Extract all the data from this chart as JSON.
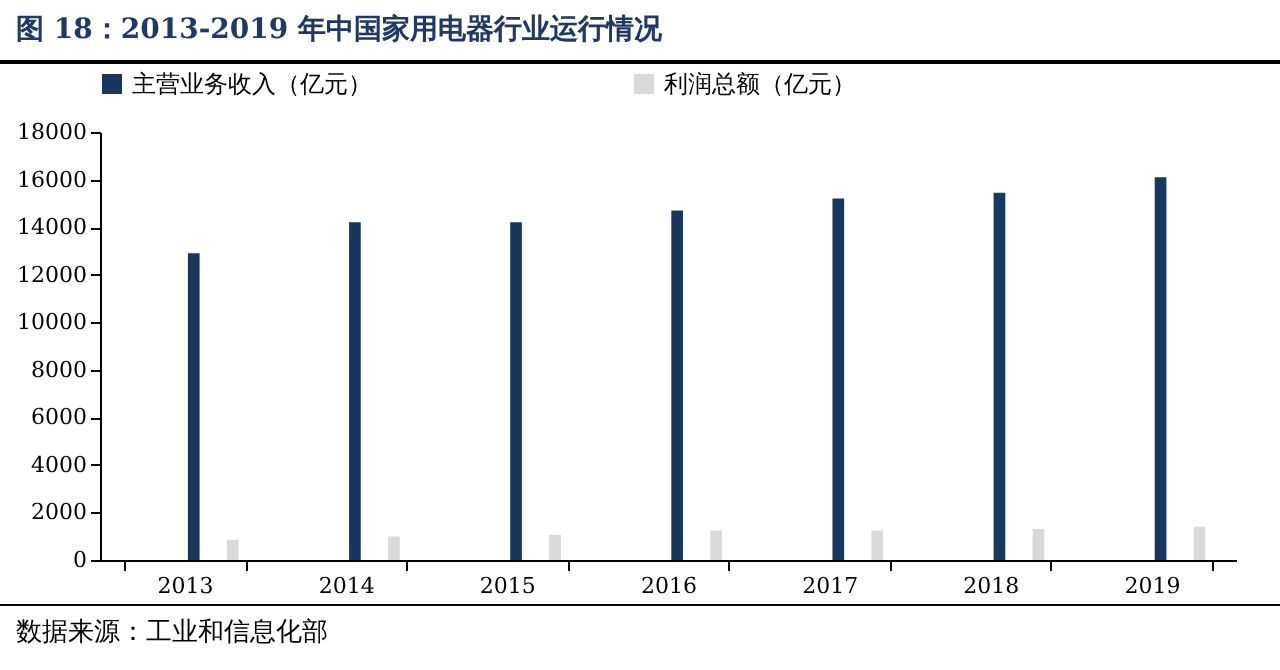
{
  "chart_data": {
    "type": "bar",
    "title": "图 18：2013-2019 年中国家用电器行业运行情况",
    "categories": [
      "2013",
      "2014",
      "2015",
      "2016",
      "2017",
      "2018",
      "2019"
    ],
    "series": [
      {
        "name": "主营业务收入（亿元）",
        "color": "#17375e",
        "values": [
          12900,
          14200,
          14200,
          14700,
          15200,
          15450,
          16100
        ]
      },
      {
        "name": "利润总额（亿元）",
        "color": "#d9d9d9",
        "values": [
          850,
          990,
          1060,
          1240,
          1240,
          1300,
          1400
        ]
      }
    ],
    "ylim": [
      0,
      18000
    ],
    "yticks": [
      0,
      2000,
      4000,
      6000,
      8000,
      10000,
      12000,
      14000,
      16000,
      18000
    ],
    "grid": false,
    "legend": "top",
    "annotations": [
      "数据来源：工业和信息化部"
    ]
  }
}
